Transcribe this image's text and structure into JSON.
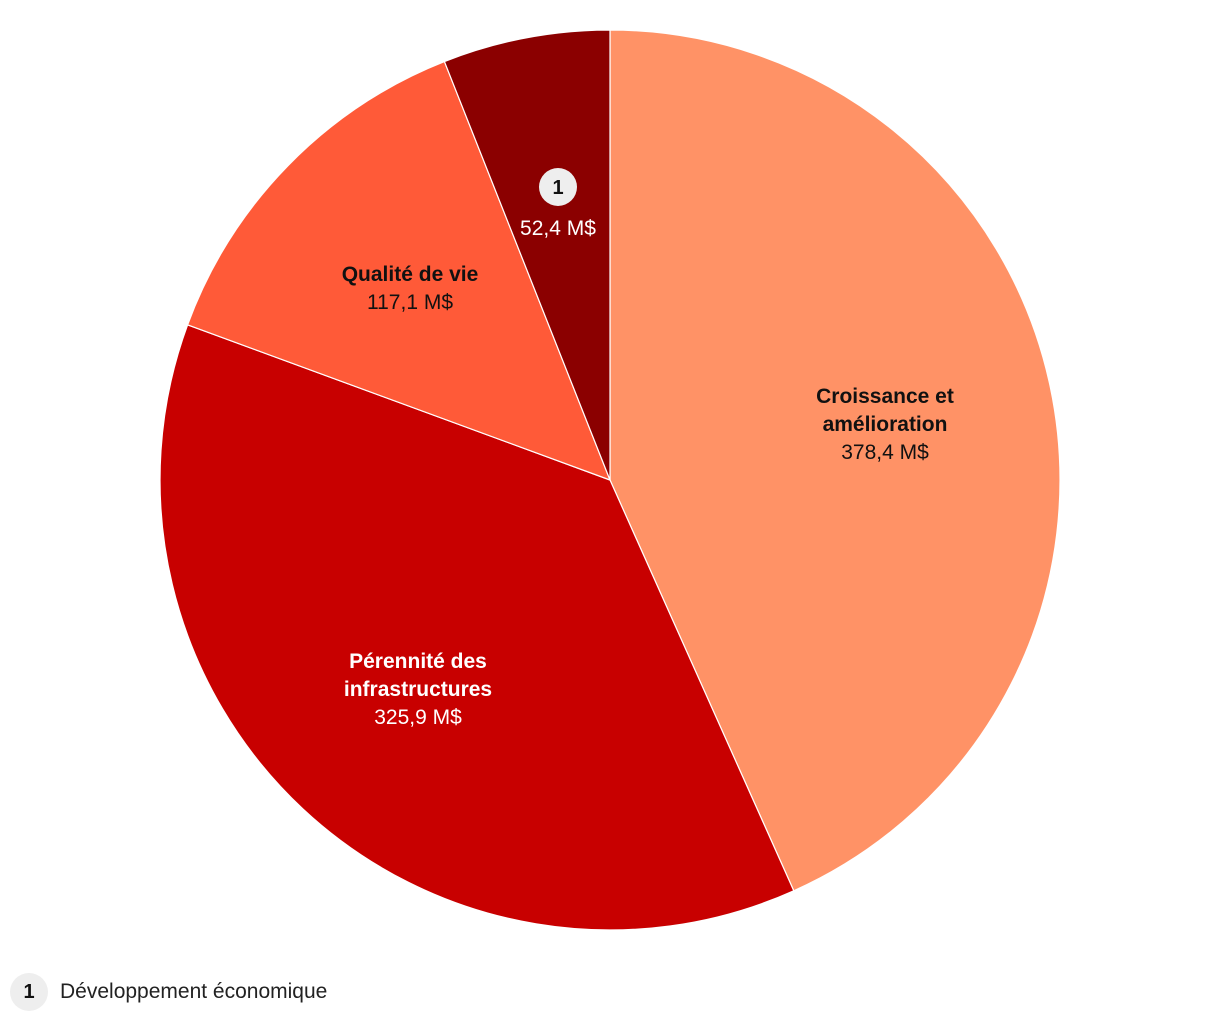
{
  "chart_data": {
    "type": "pie",
    "unit": "M$",
    "slices": [
      {
        "name_lines": [
          "Croissance et",
          "amélioration"
        ],
        "value": 378.4,
        "value_label": "378,4 M$",
        "color": "#ff9266",
        "label_color": "#111111"
      },
      {
        "name_lines": [
          "Pérennité des",
          "infrastructures"
        ],
        "value": 325.9,
        "value_label": "325,9 M$",
        "color": "#c80000",
        "label_color": "#ffffff"
      },
      {
        "name_lines": [
          "Qualité de vie"
        ],
        "value": 117.1,
        "value_label": "117,1 M$",
        "color": "#ff5a38",
        "label_color": "#111111"
      },
      {
        "name_lines": [],
        "marker": "1",
        "value": 52.4,
        "value_label": "52,4 M$",
        "color": "#8b0000",
        "label_color": "#ffffff"
      }
    ]
  },
  "footnote": {
    "marker": "1",
    "text": "Développement économique"
  }
}
